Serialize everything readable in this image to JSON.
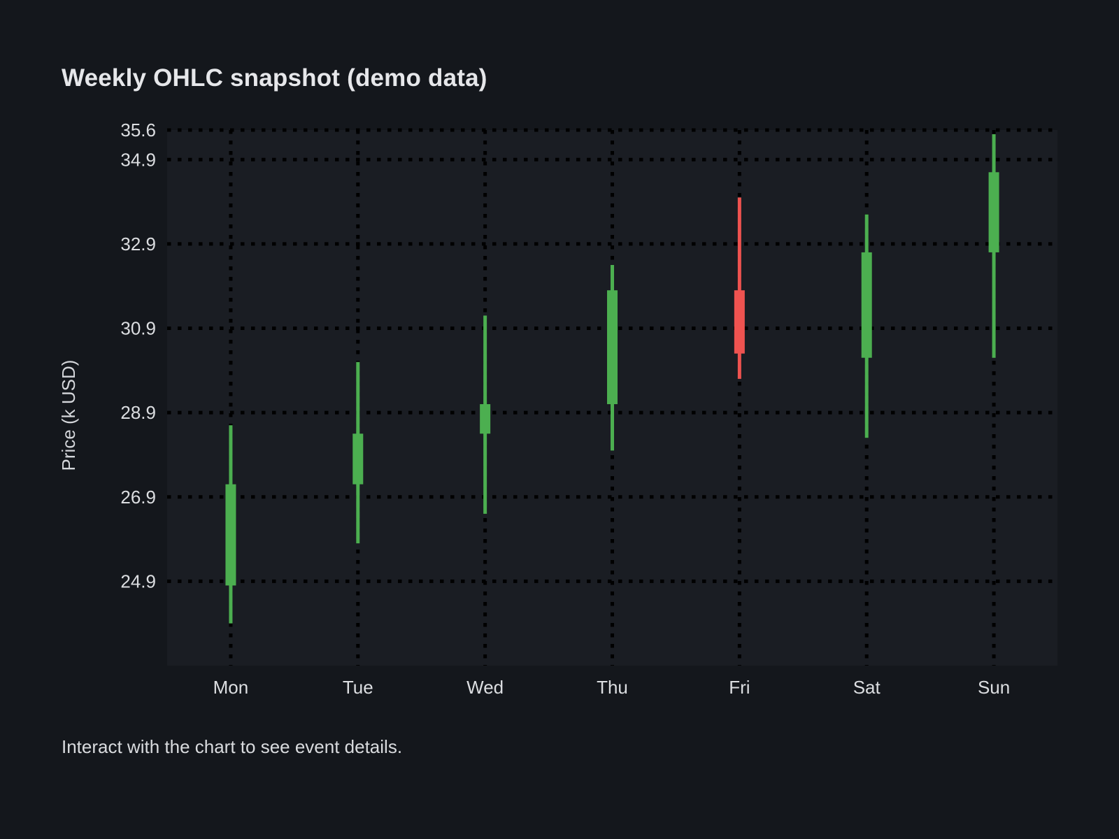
{
  "header": {
    "title": "Weekly OHLC snapshot (demo data)"
  },
  "footer": {
    "note": "Interact with the chart to see event details."
  },
  "chart_data": {
    "type": "candlestick",
    "title": "Weekly OHLC snapshot (demo data)",
    "xlabel": "",
    "ylabel": "Price (k USD)",
    "categories": [
      "Mon",
      "Tue",
      "Wed",
      "Thu",
      "Fri",
      "Sat",
      "Sun"
    ],
    "candles": [
      {
        "day": "Mon",
        "open": 24.8,
        "high": 28.6,
        "low": 23.9,
        "close": 27.2
      },
      {
        "day": "Tue",
        "open": 27.2,
        "high": 30.1,
        "low": 25.8,
        "close": 28.4
      },
      {
        "day": "Wed",
        "open": 28.4,
        "high": 31.2,
        "low": 26.5,
        "close": 29.1
      },
      {
        "day": "Thu",
        "open": 29.1,
        "high": 32.4,
        "low": 28.0,
        "close": 31.8
      },
      {
        "day": "Fri",
        "open": 31.8,
        "high": 34.0,
        "low": 29.7,
        "close": 30.3
      },
      {
        "day": "Sat",
        "open": 30.2,
        "high": 33.6,
        "low": 28.3,
        "close": 32.7
      },
      {
        "day": "Sun",
        "open": 32.7,
        "high": 35.5,
        "low": 30.2,
        "close": 34.6
      }
    ],
    "yticks": [
      "35.6",
      "34.9",
      "32.9",
      "30.9",
      "28.9",
      "26.9",
      "24.9"
    ],
    "ylim": [
      22.9,
      35.6
    ],
    "grid": true,
    "grid_style": "dotted",
    "legend": "none",
    "colors": {
      "up": "#4caf50",
      "down": "#ef5350",
      "grid": "#000000",
      "plot_bg": "#1a1d23",
      "page_bg": "#14171c",
      "tick_text": "#dcdee1",
      "axis_label_text": "#d4d6da",
      "title_text": "#e6e7ea",
      "footer_text": "#d9dbde"
    }
  }
}
